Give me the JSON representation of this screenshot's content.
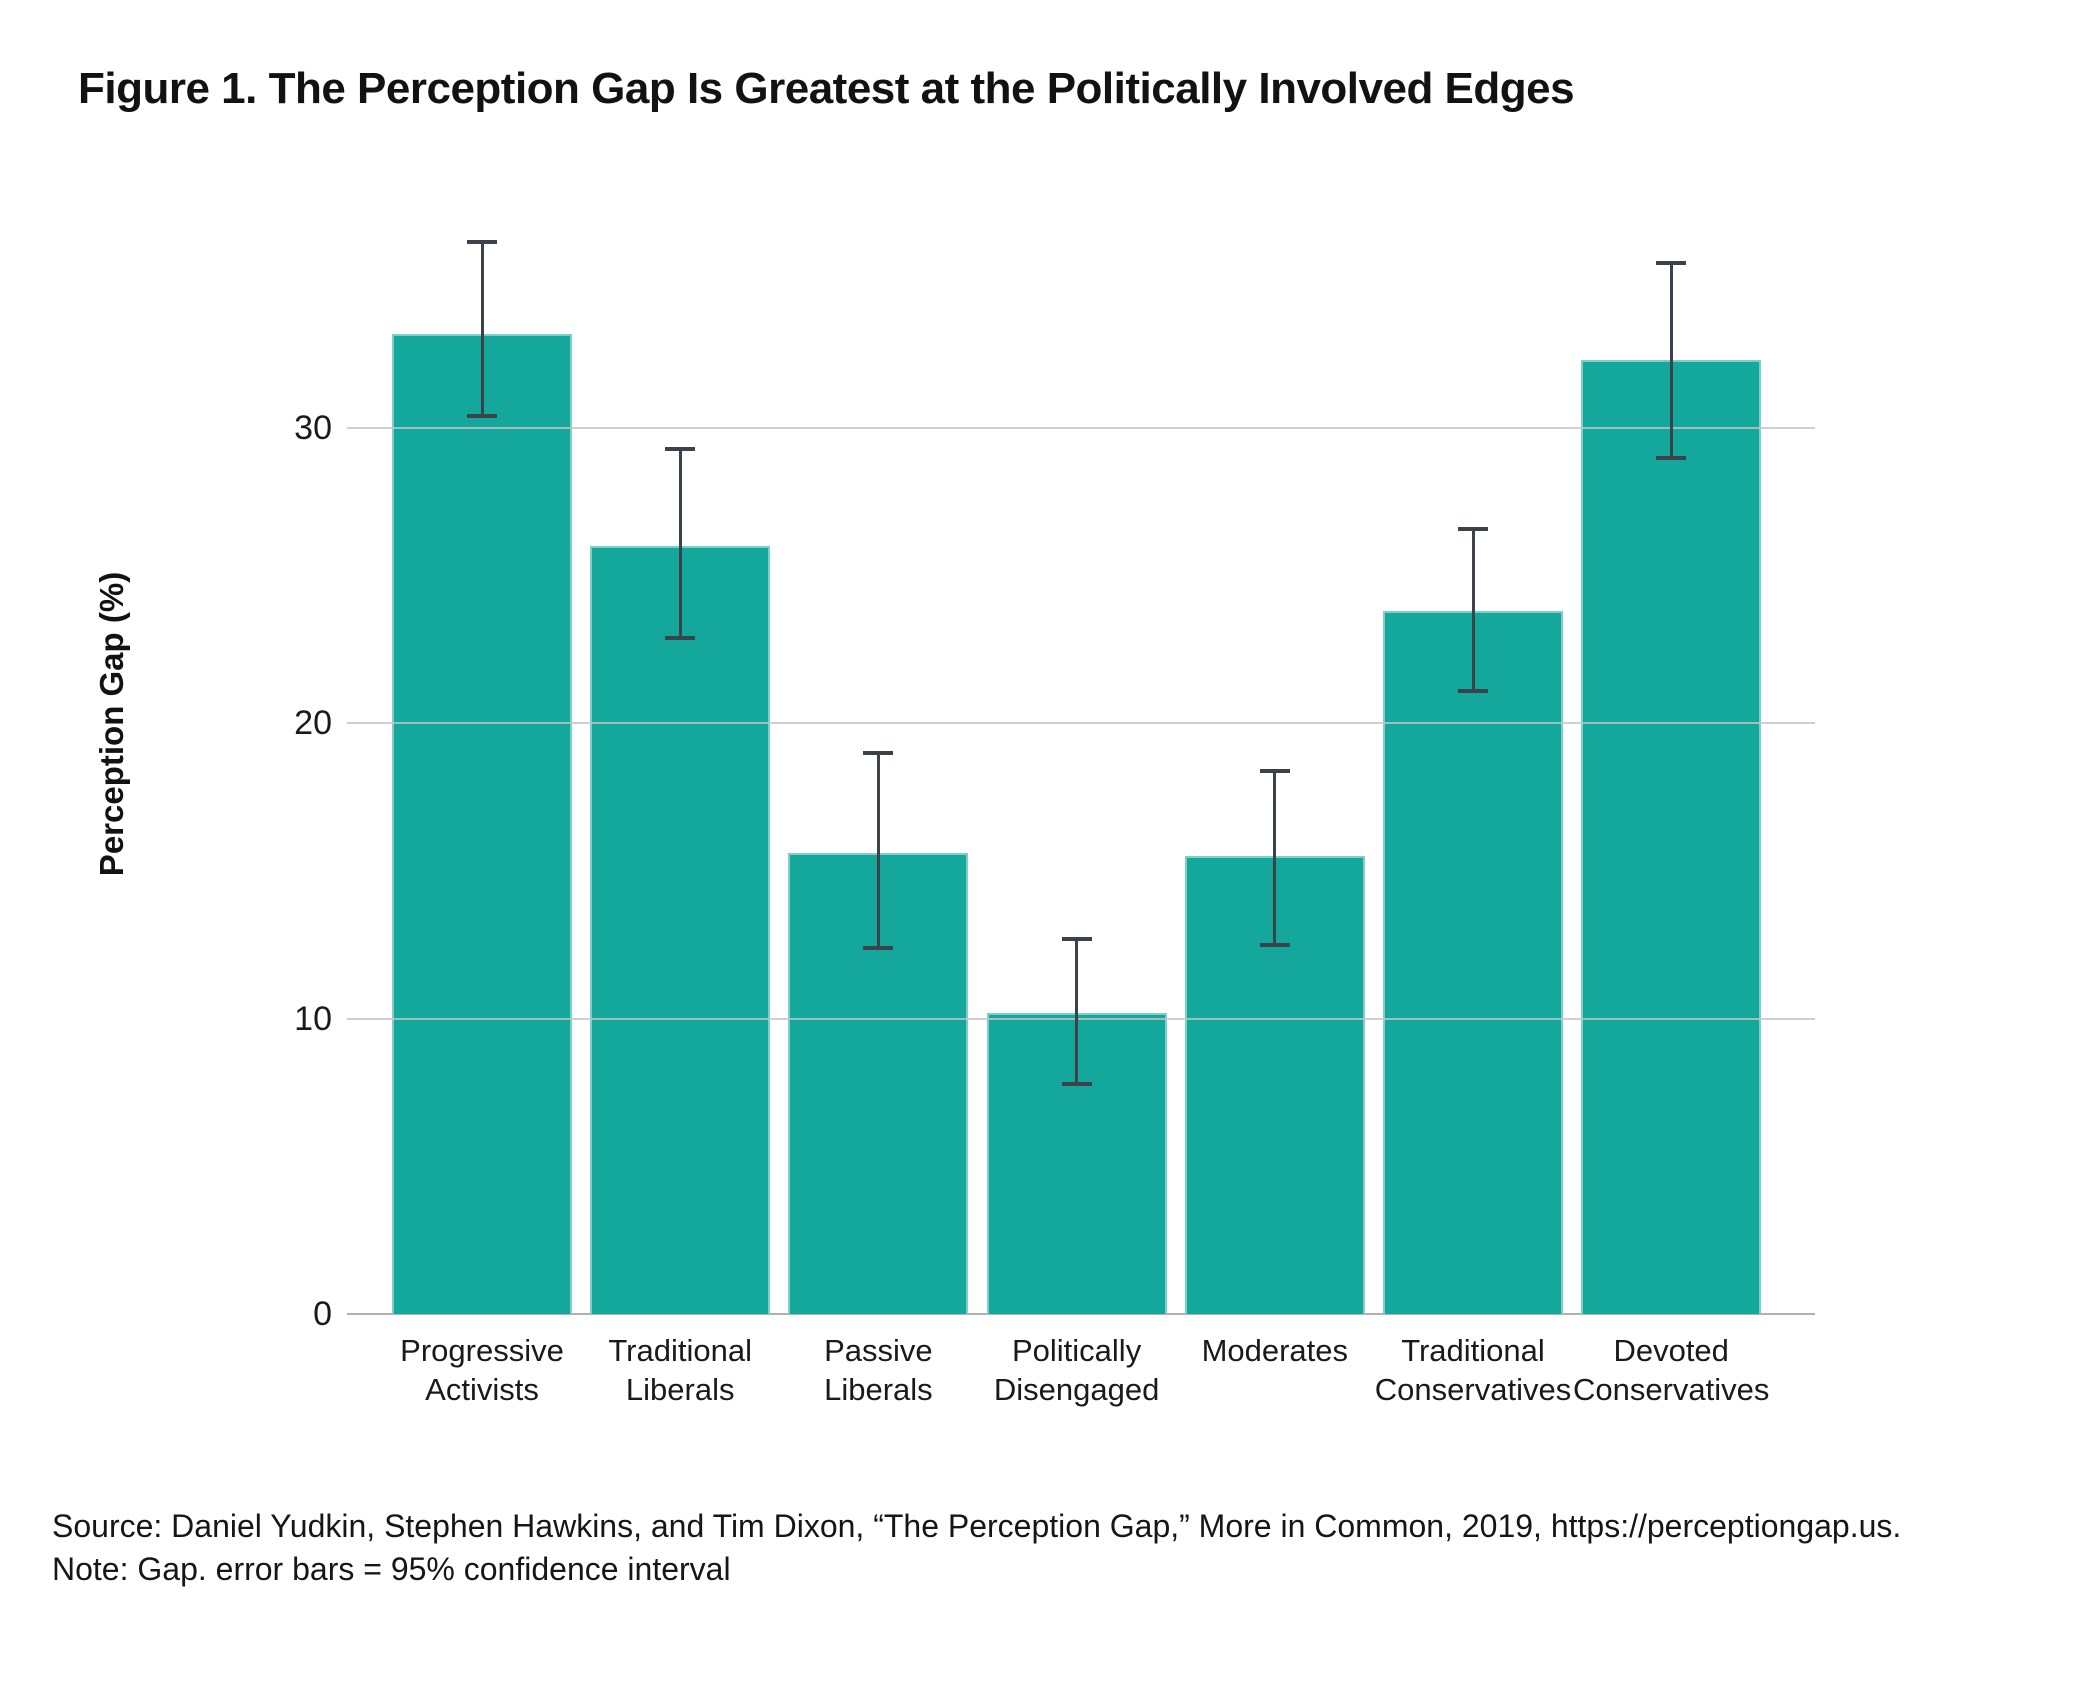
{
  "footer": {
    "source": "Source: Daniel Yudkin, Stephen Hawkins, and Tim Dixon, “The Perception Gap,” More in Common, 2019, https://perceptiongap.us.",
    "note": "Note: Gap. error bars = 95% confidence interval"
  },
  "colors": {
    "bar": "#14a89d",
    "error_bar": "#3b4249",
    "gridline": "#c3c4c5",
    "axis_line": "#b0b1b2",
    "text": "#121212"
  },
  "chart_data": {
    "type": "bar",
    "title": "Figure 1. The Perception Gap Is Greatest at the Politically Involved Edges",
    "xlabel": "",
    "ylabel": "Perception Gap (%)",
    "categories": [
      "Progressive\nActivists",
      "Traditional\nLiberals",
      "Passive\nLiberals",
      "Politically\nDisengaged",
      "Moderates",
      "Traditional\nConservatives",
      "Devoted\nConservatives"
    ],
    "values": [
      33.2,
      26,
      15.6,
      10.2,
      15.5,
      23.8,
      32.3
    ],
    "error_low": [
      30.4,
      22.9,
      12.4,
      7.8,
      12.5,
      21.1,
      29
    ],
    "error_high": [
      36.3,
      29.3,
      19,
      12.7,
      18.4,
      26.6,
      35.6
    ],
    "yticks": [
      0,
      10,
      20,
      30
    ],
    "ylim": [
      0,
      38
    ],
    "grid": "horizontal",
    "legend_position": "none",
    "error_bars_meaning": "95% confidence interval"
  }
}
